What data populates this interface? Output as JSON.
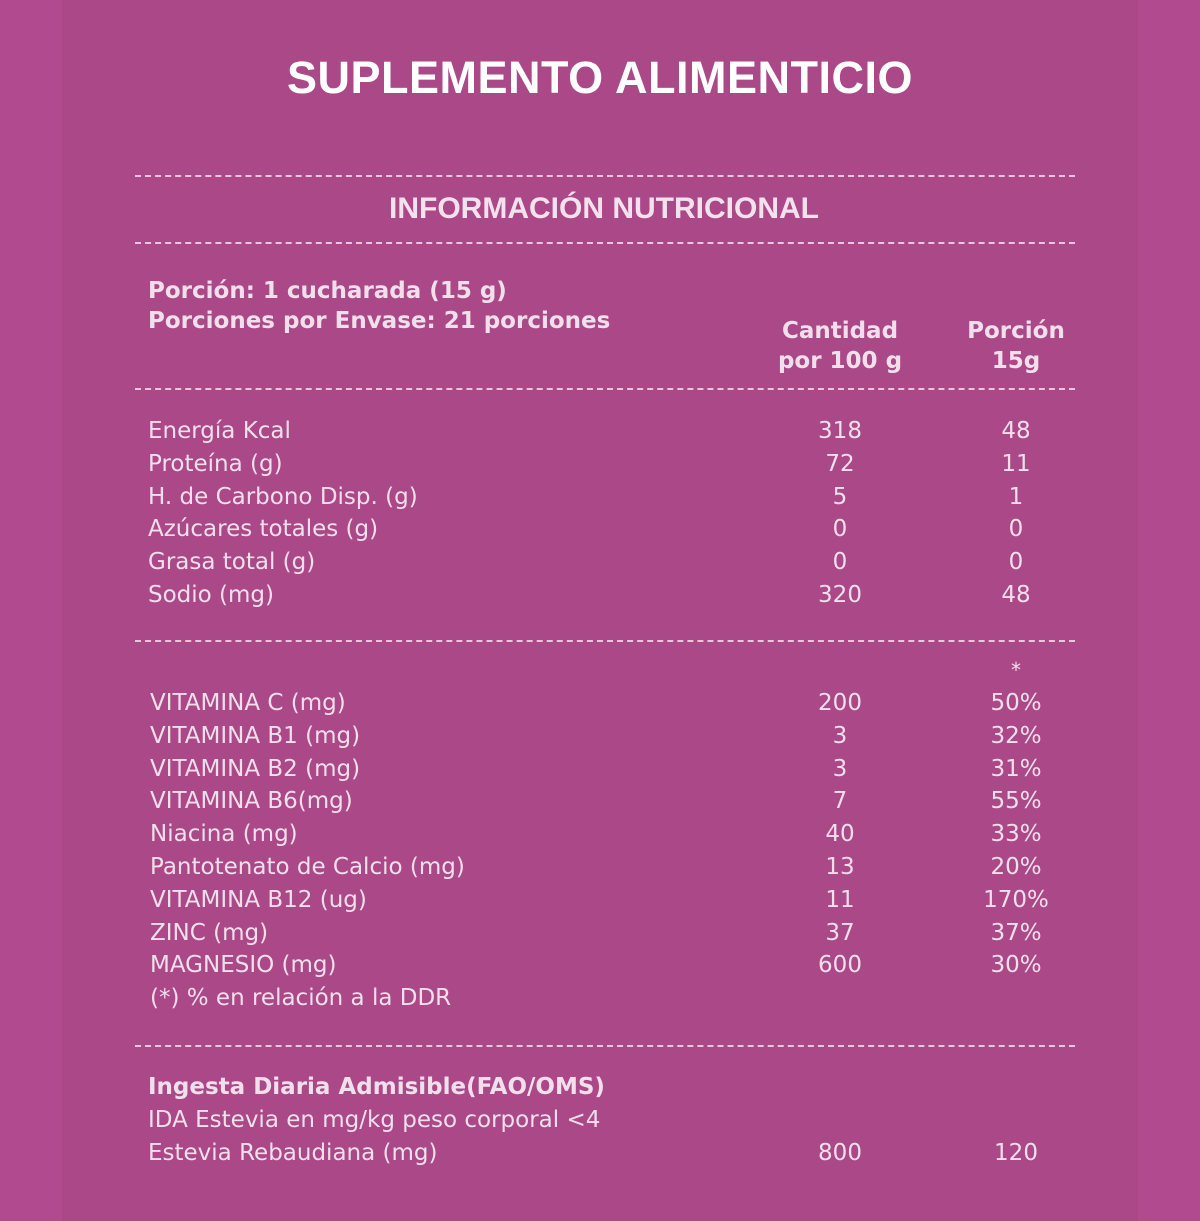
{
  "title": "SUPLEMENTO ALIMENTICIO",
  "section_title": "INFORMACIÓN NUTRICIONAL",
  "serving": {
    "portion": "Porción: 1 cucharada (15 g)",
    "per_container": "Porciones por Envase: 21 porciones"
  },
  "columns": {
    "per100_line1": "Cantidad",
    "per100_line2": "por 100 g",
    "portion_line1": "Porción",
    "portion_line2": "15g"
  },
  "nutrients": [
    {
      "label": "Energía Kcal",
      "per100": "318",
      "portion": "48"
    },
    {
      "label": "Proteína (g)",
      "per100": "72",
      "portion": "11"
    },
    {
      "label": "H. de Carbono Disp. (g)",
      "per100": "5",
      "portion": "1"
    },
    {
      "label": "Azúcares totales (g)",
      "per100": "0",
      "portion": "0"
    },
    {
      "label": "Grasa total (g)",
      "per100": "0",
      "portion": "0"
    },
    {
      "label": "Sodio (mg)",
      "per100": "320",
      "portion": "48"
    }
  ],
  "vitamins_marker": "*",
  "vitamins": [
    {
      "label": "VITAMINA C (mg)",
      "per100": "200",
      "portion": "50%"
    },
    {
      "label": "VITAMINA B1 (mg)",
      "per100": "3",
      "portion": "32%"
    },
    {
      "label": "VITAMINA B2 (mg)",
      "per100": "3",
      "portion": "31%"
    },
    {
      "label": "VITAMINA B6(mg)",
      "per100": "7",
      "portion": "55%"
    },
    {
      "label": "Niacina (mg)",
      "per100": "40",
      "portion": "33%"
    },
    {
      "label": "Pantotenato de Calcio (mg)",
      "per100": "13",
      "portion": "20%"
    },
    {
      "label": "VITAMINA B12 (ug)",
      "per100": "11",
      "portion": "170%"
    },
    {
      "label": "ZINC (mg)",
      "per100": "37",
      "portion": "37%"
    },
    {
      "label": "MAGNESIO (mg)",
      "per100": "600",
      "portion": "30%"
    }
  ],
  "footnote": "(*) % en relación a la DDR",
  "ida": {
    "heading": "Ingesta Diaria Admisible(FAO/OMS)",
    "line": "IDA Estevia en mg/kg peso corporal <4",
    "row": {
      "label": "Estevia Rebaudiana (mg)",
      "per100": "800",
      "portion": "120"
    }
  },
  "colors": {
    "background": "#b24a8f",
    "panel": "#ab4887",
    "text": "#ffffff",
    "dash": "#e8c7dc"
  }
}
